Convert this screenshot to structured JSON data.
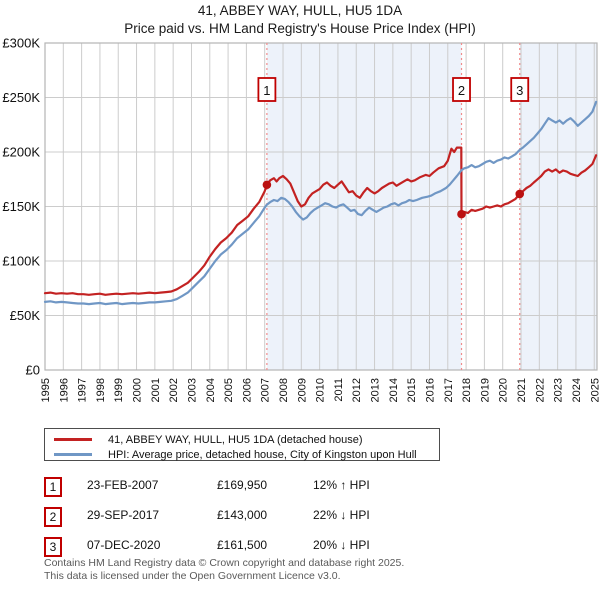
{
  "chart_data": {
    "type": "line",
    "title": "41, ABBEY WAY, HULL, HU5 1DA",
    "subtitle": "Price paid vs. HM Land Registry's House Price Index (HPI)",
    "xlim": [
      1995,
      2025.15
    ],
    "ylim": [
      0,
      300
    ],
    "grid": true,
    "y_unit": "GBP thousands",
    "yticks": [
      {
        "value": 0,
        "label": "£0"
      },
      {
        "value": 50,
        "label": "£50K"
      },
      {
        "value": 100,
        "label": "£100K"
      },
      {
        "value": 150,
        "label": "£150K"
      },
      {
        "value": 200,
        "label": "£200K"
      },
      {
        "value": 250,
        "label": "£250K"
      },
      {
        "value": 300,
        "label": "£300K"
      }
    ],
    "xticks": [
      1995,
      1996,
      1997,
      1998,
      1999,
      2000,
      2001,
      2002,
      2003,
      2004,
      2005,
      2006,
      2007,
      2008,
      2009,
      2010,
      2011,
      2012,
      2013,
      2014,
      2015,
      2016,
      2017,
      2018,
      2019,
      2020,
      2021,
      2022,
      2023,
      2024,
      2025
    ],
    "shaded_spans": [
      [
        2007.12,
        2017.75
      ],
      [
        2020.93,
        2025.15
      ]
    ],
    "sale_vlines": [
      2007.12,
      2017.75,
      2020.93
    ],
    "sale_points": [
      {
        "n": "1",
        "x": 2007.12,
        "y": 169.95
      },
      {
        "n": "2",
        "x": 2017.75,
        "y": 143.0
      },
      {
        "n": "3",
        "x": 2020.93,
        "y": 161.5
      }
    ],
    "series": [
      {
        "name": "41, ABBEY WAY, HULL, HU5 1DA (detached house)",
        "color": "#c32222",
        "width": 2.2,
        "points": [
          [
            1995.0,
            70.5
          ],
          [
            1995.3,
            71
          ],
          [
            1995.6,
            70
          ],
          [
            1995.9,
            70.5
          ],
          [
            1996.2,
            70
          ],
          [
            1996.5,
            70.5
          ],
          [
            1996.8,
            69.5
          ],
          [
            1997.1,
            69.5
          ],
          [
            1997.4,
            69
          ],
          [
            1997.7,
            69.5
          ],
          [
            1998.0,
            70
          ],
          [
            1998.3,
            69
          ],
          [
            1998.6,
            69.5
          ],
          [
            1998.9,
            70
          ],
          [
            1999.2,
            69.5
          ],
          [
            1999.5,
            70
          ],
          [
            1999.8,
            70.5
          ],
          [
            2000.1,
            70
          ],
          [
            2000.4,
            70.5
          ],
          [
            2000.7,
            71
          ],
          [
            2001.0,
            70.5
          ],
          [
            2001.3,
            71
          ],
          [
            2001.6,
            71.5
          ],
          [
            2001.9,
            72
          ],
          [
            2002.2,
            74
          ],
          [
            2002.5,
            77
          ],
          [
            2002.8,
            80
          ],
          [
            2003.1,
            85
          ],
          [
            2003.4,
            90
          ],
          [
            2003.7,
            96
          ],
          [
            2004.0,
            104
          ],
          [
            2004.3,
            111
          ],
          [
            2004.6,
            117
          ],
          [
            2004.9,
            121
          ],
          [
            2005.2,
            126
          ],
          [
            2005.5,
            133
          ],
          [
            2005.8,
            137
          ],
          [
            2006.1,
            141
          ],
          [
            2006.4,
            148
          ],
          [
            2006.7,
            154
          ],
          [
            2007.0,
            164
          ],
          [
            2007.12,
            169.95
          ],
          [
            2007.3,
            174
          ],
          [
            2007.5,
            176
          ],
          [
            2007.65,
            173
          ],
          [
            2007.8,
            176
          ],
          [
            2008.0,
            178
          ],
          [
            2008.2,
            175
          ],
          [
            2008.4,
            171
          ],
          [
            2008.6,
            163
          ],
          [
            2008.8,
            155
          ],
          [
            2009.0,
            150
          ],
          [
            2009.2,
            152
          ],
          [
            2009.4,
            158
          ],
          [
            2009.6,
            162
          ],
          [
            2009.8,
            164
          ],
          [
            2010.0,
            166
          ],
          [
            2010.2,
            170
          ],
          [
            2010.4,
            172
          ],
          [
            2010.6,
            169
          ],
          [
            2010.8,
            167
          ],
          [
            2011.0,
            170
          ],
          [
            2011.2,
            173
          ],
          [
            2011.4,
            168
          ],
          [
            2011.6,
            163
          ],
          [
            2011.8,
            164
          ],
          [
            2012.0,
            160
          ],
          [
            2012.2,
            158
          ],
          [
            2012.4,
            163
          ],
          [
            2012.6,
            167
          ],
          [
            2012.8,
            164
          ],
          [
            2013.0,
            162
          ],
          [
            2013.2,
            164
          ],
          [
            2013.4,
            167
          ],
          [
            2013.6,
            169
          ],
          [
            2013.8,
            171
          ],
          [
            2014.0,
            172
          ],
          [
            2014.2,
            169
          ],
          [
            2014.4,
            171
          ],
          [
            2014.6,
            173
          ],
          [
            2014.8,
            175
          ],
          [
            2015.0,
            173
          ],
          [
            2015.2,
            174
          ],
          [
            2015.5,
            177
          ],
          [
            2015.8,
            179
          ],
          [
            2016.0,
            178
          ],
          [
            2016.2,
            181
          ],
          [
            2016.5,
            185
          ],
          [
            2016.8,
            187
          ],
          [
            2017.0,
            192
          ],
          [
            2017.2,
            203
          ],
          [
            2017.35,
            200
          ],
          [
            2017.5,
            204
          ],
          [
            2017.74,
            204
          ],
          [
            2017.75,
            143
          ],
          [
            2017.9,
            145
          ],
          [
            2018.1,
            144
          ],
          [
            2018.3,
            147
          ],
          [
            2018.5,
            146
          ],
          [
            2018.7,
            147
          ],
          [
            2018.9,
            148
          ],
          [
            2019.1,
            150
          ],
          [
            2019.3,
            149
          ],
          [
            2019.5,
            150
          ],
          [
            2019.7,
            151
          ],
          [
            2019.9,
            150
          ],
          [
            2020.1,
            152
          ],
          [
            2020.3,
            153
          ],
          [
            2020.5,
            155
          ],
          [
            2020.7,
            157
          ],
          [
            2020.93,
            161.5
          ],
          [
            2021.1,
            164
          ],
          [
            2021.3,
            167
          ],
          [
            2021.5,
            169
          ],
          [
            2021.7,
            172
          ],
          [
            2021.9,
            175
          ],
          [
            2022.1,
            178
          ],
          [
            2022.3,
            182
          ],
          [
            2022.5,
            184
          ],
          [
            2022.7,
            182
          ],
          [
            2022.9,
            184
          ],
          [
            2023.1,
            181
          ],
          [
            2023.3,
            183
          ],
          [
            2023.5,
            182
          ],
          [
            2023.7,
            180
          ],
          [
            2023.9,
            179
          ],
          [
            2024.1,
            178
          ],
          [
            2024.3,
            181
          ],
          [
            2024.5,
            183
          ],
          [
            2024.7,
            186
          ],
          [
            2024.9,
            189
          ],
          [
            2025.1,
            197
          ]
        ]
      },
      {
        "name": "HPI: Average price, detached house, City of Kingston upon Hull",
        "color": "#7097c5",
        "width": 2.2,
        "points": [
          [
            1995.0,
            62.5
          ],
          [
            1995.3,
            63
          ],
          [
            1995.6,
            62
          ],
          [
            1995.9,
            62.5
          ],
          [
            1996.2,
            62
          ],
          [
            1996.5,
            61.5
          ],
          [
            1996.8,
            61
          ],
          [
            1997.1,
            61
          ],
          [
            1997.4,
            60.5
          ],
          [
            1997.7,
            61
          ],
          [
            1998.0,
            61.5
          ],
          [
            1998.3,
            60.5
          ],
          [
            1998.6,
            61
          ],
          [
            1998.9,
            61.5
          ],
          [
            1999.2,
            60.5
          ],
          [
            1999.5,
            61
          ],
          [
            1999.8,
            61.5
          ],
          [
            2000.1,
            61
          ],
          [
            2000.4,
            61.5
          ],
          [
            2000.7,
            62
          ],
          [
            2001.0,
            62
          ],
          [
            2001.3,
            62.5
          ],
          [
            2001.6,
            63
          ],
          [
            2001.9,
            63.5
          ],
          [
            2002.2,
            65
          ],
          [
            2002.5,
            68
          ],
          [
            2002.8,
            71
          ],
          [
            2003.1,
            76
          ],
          [
            2003.4,
            81
          ],
          [
            2003.7,
            86
          ],
          [
            2004.0,
            93
          ],
          [
            2004.3,
            100
          ],
          [
            2004.6,
            106
          ],
          [
            2004.9,
            110
          ],
          [
            2005.2,
            115
          ],
          [
            2005.5,
            121
          ],
          [
            2005.8,
            125
          ],
          [
            2006.1,
            129
          ],
          [
            2006.4,
            135
          ],
          [
            2006.7,
            141
          ],
          [
            2007.0,
            149
          ],
          [
            2007.12,
            151.7
          ],
          [
            2007.3,
            154
          ],
          [
            2007.5,
            156
          ],
          [
            2007.7,
            155
          ],
          [
            2007.9,
            158
          ],
          [
            2008.1,
            157
          ],
          [
            2008.3,
            154
          ],
          [
            2008.5,
            150
          ],
          [
            2008.7,
            145
          ],
          [
            2008.9,
            141
          ],
          [
            2009.1,
            138
          ],
          [
            2009.3,
            140
          ],
          [
            2009.5,
            144
          ],
          [
            2009.7,
            147
          ],
          [
            2009.9,
            149
          ],
          [
            2010.1,
            151
          ],
          [
            2010.3,
            153
          ],
          [
            2010.5,
            152
          ],
          [
            2010.7,
            150
          ],
          [
            2010.9,
            149
          ],
          [
            2011.1,
            151
          ],
          [
            2011.3,
            152
          ],
          [
            2011.5,
            149
          ],
          [
            2011.7,
            146
          ],
          [
            2011.9,
            147
          ],
          [
            2012.1,
            143
          ],
          [
            2012.3,
            142
          ],
          [
            2012.5,
            146
          ],
          [
            2012.7,
            149
          ],
          [
            2012.9,
            147
          ],
          [
            2013.1,
            145
          ],
          [
            2013.3,
            147
          ],
          [
            2013.5,
            149
          ],
          [
            2013.7,
            150
          ],
          [
            2013.9,
            152
          ],
          [
            2014.1,
            153
          ],
          [
            2014.3,
            151
          ],
          [
            2014.5,
            153
          ],
          [
            2014.7,
            154
          ],
          [
            2014.9,
            156
          ],
          [
            2015.1,
            155
          ],
          [
            2015.3,
            156
          ],
          [
            2015.6,
            158
          ],
          [
            2015.9,
            159
          ],
          [
            2016.1,
            160
          ],
          [
            2016.3,
            162
          ],
          [
            2016.6,
            164
          ],
          [
            2016.9,
            167
          ],
          [
            2017.1,
            170
          ],
          [
            2017.3,
            174
          ],
          [
            2017.5,
            178
          ],
          [
            2017.75,
            183.3
          ],
          [
            2017.9,
            185
          ],
          [
            2018.1,
            186
          ],
          [
            2018.3,
            188
          ],
          [
            2018.5,
            186
          ],
          [
            2018.7,
            187
          ],
          [
            2018.9,
            189
          ],
          [
            2019.1,
            191
          ],
          [
            2019.3,
            192
          ],
          [
            2019.5,
            190
          ],
          [
            2019.7,
            192
          ],
          [
            2019.9,
            193
          ],
          [
            2020.1,
            195
          ],
          [
            2020.3,
            194
          ],
          [
            2020.5,
            196
          ],
          [
            2020.7,
            198
          ],
          [
            2020.93,
            201.9
          ],
          [
            2021.1,
            204
          ],
          [
            2021.3,
            207
          ],
          [
            2021.5,
            210
          ],
          [
            2021.7,
            213
          ],
          [
            2021.9,
            217
          ],
          [
            2022.1,
            221
          ],
          [
            2022.3,
            226
          ],
          [
            2022.5,
            231
          ],
          [
            2022.7,
            229
          ],
          [
            2022.9,
            227
          ],
          [
            2023.1,
            229
          ],
          [
            2023.3,
            226
          ],
          [
            2023.5,
            229
          ],
          [
            2023.7,
            231
          ],
          [
            2023.9,
            228
          ],
          [
            2024.1,
            224
          ],
          [
            2024.3,
            227
          ],
          [
            2024.5,
            230
          ],
          [
            2024.7,
            233
          ],
          [
            2024.9,
            237
          ],
          [
            2025.1,
            246
          ]
        ]
      }
    ],
    "colors": {
      "shade": "#edf2fa",
      "grid": "#cccccc",
      "frame": "#b5b5b5",
      "dashed_vline": "#f08c8c",
      "sale_dot": "#bb1111",
      "marker_box_border": "#c00000"
    }
  },
  "legend": [
    {
      "label": "41, ABBEY WAY, HULL, HU5 1DA (detached house)",
      "color": "#c32222"
    },
    {
      "label": "HPI: Average price, detached house, City of Kingston upon Hull",
      "color": "#7097c5"
    }
  ],
  "transactions": [
    {
      "num": "1",
      "date": "23-FEB-2007",
      "price": "£169,950",
      "delta": "12% ↑ HPI"
    },
    {
      "num": "2",
      "date": "29-SEP-2017",
      "price": "£143,000",
      "delta": "22% ↓ HPI"
    },
    {
      "num": "3",
      "date": "07-DEC-2020",
      "price": "£161,500",
      "delta": "20% ↓ HPI"
    }
  ],
  "footer": {
    "line1": "Contains HM Land Registry data © Crown copyright and database right 2025.",
    "line2": "This data is licensed under the Open Government Licence v3.0."
  }
}
